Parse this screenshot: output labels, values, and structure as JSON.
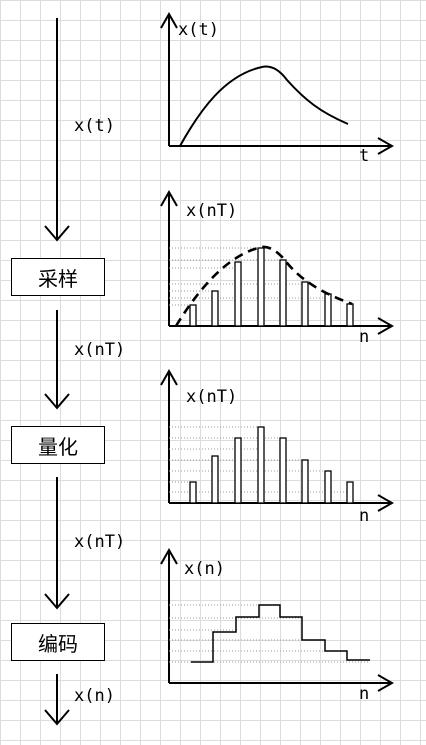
{
  "left_flow": {
    "signal_labels": [
      "x(t)",
      "x(nT)",
      "x(nT)",
      "x(n)"
    ],
    "blocks": [
      "采样",
      "量化",
      "编码"
    ]
  },
  "plots": [
    {
      "ylabel": "x(t)",
      "xlabel": "t"
    },
    {
      "ylabel": "x(nT)",
      "xlabel": "n"
    },
    {
      "ylabel": "x(nT)",
      "xlabel": "n"
    },
    {
      "ylabel": "x(n)",
      "xlabel": "n"
    }
  ]
}
